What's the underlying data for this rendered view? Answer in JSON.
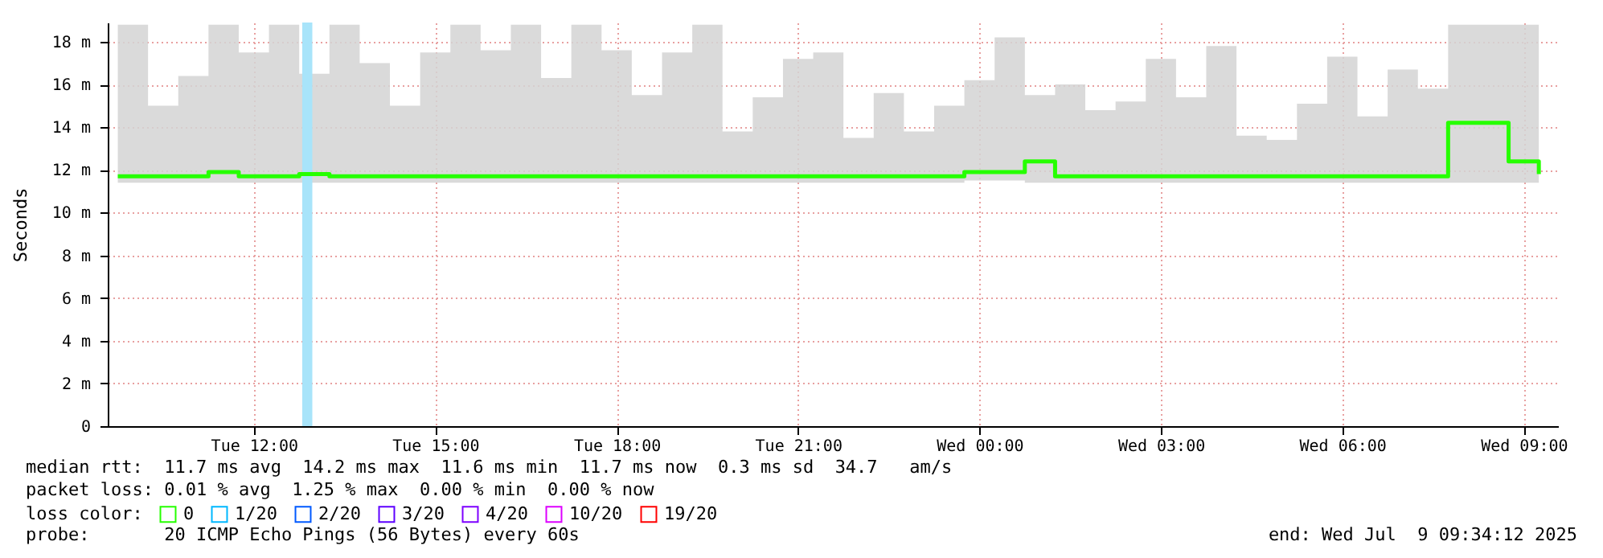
{
  "chart_data": {
    "type": "step",
    "ylabel": "Seconds",
    "x": [
      "2025-07-08T09:45",
      "2025-07-08T10:15",
      "2025-07-08T10:45",
      "2025-07-08T11:15",
      "2025-07-08T11:45",
      "2025-07-08T12:15",
      "2025-07-08T12:45",
      "2025-07-08T13:15",
      "2025-07-08T13:45",
      "2025-07-08T14:15",
      "2025-07-08T14:45",
      "2025-07-08T15:15",
      "2025-07-08T15:45",
      "2025-07-08T16:15",
      "2025-07-08T16:45",
      "2025-07-08T17:15",
      "2025-07-08T17:45",
      "2025-07-08T18:15",
      "2025-07-08T18:45",
      "2025-07-08T19:15",
      "2025-07-08T19:45",
      "2025-07-08T20:15",
      "2025-07-08T20:45",
      "2025-07-08T21:15",
      "2025-07-08T21:45",
      "2025-07-08T22:15",
      "2025-07-08T22:45",
      "2025-07-08T23:15",
      "2025-07-08T23:45",
      "2025-07-09T00:15",
      "2025-07-09T00:45",
      "2025-07-09T01:15",
      "2025-07-09T01:45",
      "2025-07-09T02:15",
      "2025-07-09T02:45",
      "2025-07-09T03:15",
      "2025-07-09T03:45",
      "2025-07-09T04:15",
      "2025-07-09T04:45",
      "2025-07-09T05:15",
      "2025-07-09T05:45",
      "2025-07-09T06:15",
      "2025-07-09T06:45",
      "2025-07-09T07:15",
      "2025-07-09T07:45",
      "2025-07-09T08:15",
      "2025-07-09T08:45",
      "2025-07-09T09:15"
    ],
    "series": [
      {
        "name": "0",
        "color": "#26ff00",
        "values": [
          11.7,
          11.7,
          11.7,
          11.9,
          11.7,
          11.7,
          11.8,
          11.7,
          11.7,
          11.7,
          11.7,
          11.7,
          11.7,
          11.7,
          11.7,
          11.7,
          11.7,
          11.7,
          11.7,
          11.7,
          11.7,
          11.7,
          11.7,
          11.7,
          11.7,
          11.7,
          11.7,
          11.7,
          11.9,
          11.9,
          12.4,
          11.7,
          11.7,
          11.7,
          11.7,
          11.7,
          11.7,
          11.7,
          11.7,
          11.7,
          11.7,
          11.7,
          11.7,
          11.7,
          14.2,
          14.2,
          12.4,
          11.8
        ],
        "lower": [
          11.4,
          11.4,
          11.4,
          11.4,
          11.4,
          11.4,
          11.4,
          11.4,
          11.4,
          11.4,
          11.4,
          11.4,
          11.4,
          11.4,
          11.4,
          11.4,
          11.4,
          11.4,
          11.4,
          11.4,
          11.4,
          11.4,
          11.4,
          11.4,
          11.4,
          11.4,
          11.4,
          11.4,
          11.5,
          11.5,
          11.4,
          11.4,
          11.4,
          11.4,
          11.4,
          11.4,
          11.4,
          11.4,
          11.4,
          11.4,
          11.4,
          11.4,
          11.4,
          11.4,
          11.4,
          11.4,
          11.4,
          11.4
        ],
        "upper": [
          18.8,
          15,
          16.4,
          18.8,
          17.5,
          18.8,
          16.5,
          18.8,
          17,
          15,
          17.5,
          18.8,
          17.6,
          18.8,
          16.3,
          18.8,
          17.6,
          15.5,
          17.5,
          18.8,
          13.8,
          15.4,
          17.2,
          17.5,
          13.5,
          15.6,
          13.8,
          15,
          16.2,
          18.2,
          15.5,
          16,
          14.8,
          15.2,
          17.2,
          15.4,
          17.8,
          13.6,
          13.4,
          15.1,
          17.3,
          14.5,
          16.7,
          15.8,
          18.8,
          18.8,
          18.8,
          18.8
        ]
      },
      {
        "name": "1/20",
        "color": "#00b8ff",
        "values": [
          null,
          null,
          null,
          null,
          null,
          null,
          null,
          null,
          null,
          null,
          null,
          null,
          null,
          null,
          null,
          null,
          null,
          null,
          null,
          null,
          null,
          null,
          null,
          null,
          null,
          null,
          null,
          null,
          null,
          null,
          null,
          null,
          null,
          null,
          null,
          null,
          null,
          null,
          null,
          null,
          null,
          null,
          null,
          null,
          null,
          null,
          null,
          null
        ]
      },
      {
        "name": "2/20",
        "color": "#0059ff",
        "values": [
          null,
          null,
          null,
          null,
          null,
          null,
          null,
          null,
          null,
          null,
          null,
          null,
          null,
          null,
          null,
          null,
          null,
          null,
          null,
          null,
          null,
          null,
          null,
          null,
          null,
          null,
          null,
          null,
          null,
          null,
          null,
          null,
          null,
          null,
          null,
          null,
          null,
          null,
          null,
          null,
          null,
          null,
          null,
          null,
          null,
          null,
          null,
          null
        ]
      },
      {
        "name": "3/20",
        "color": "#5e00ff",
        "values": [
          null,
          null,
          null,
          null,
          null,
          null,
          null,
          null,
          null,
          null,
          null,
          null,
          null,
          null,
          null,
          null,
          null,
          null,
          null,
          null,
          null,
          null,
          null,
          null,
          null,
          null,
          null,
          null,
          null,
          null,
          null,
          null,
          null,
          null,
          null,
          null,
          null,
          null,
          null,
          null,
          null,
          null,
          null,
          null,
          null,
          null,
          null,
          null
        ]
      },
      {
        "name": "4/20",
        "color": "#7e00ff",
        "values": [
          null,
          null,
          null,
          null,
          null,
          null,
          null,
          null,
          null,
          null,
          null,
          null,
          null,
          null,
          null,
          null,
          null,
          null,
          null,
          null,
          null,
          null,
          null,
          null,
          null,
          null,
          null,
          null,
          null,
          null,
          null,
          null,
          null,
          null,
          null,
          null,
          null,
          null,
          null,
          null,
          null,
          null,
          null,
          null,
          null,
          null,
          null,
          null
        ]
      },
      {
        "name": "10/20",
        "color": "#dd00ff",
        "values": [
          null,
          null,
          null,
          null,
          null,
          null,
          null,
          null,
          null,
          null,
          null,
          null,
          null,
          null,
          null,
          null,
          null,
          null,
          null,
          null,
          null,
          null,
          null,
          null,
          null,
          null,
          null,
          null,
          null,
          null,
          null,
          null,
          null,
          null,
          null,
          null,
          null,
          null,
          null,
          null,
          null,
          null,
          null,
          null,
          null,
          null,
          null,
          null
        ]
      },
      {
        "name": "19/20",
        "color": "#ff0000",
        "values": [
          null,
          null,
          null,
          null,
          null,
          null,
          null,
          null,
          null,
          null,
          null,
          null,
          null,
          null,
          null,
          null,
          null,
          null,
          null,
          null,
          null,
          null,
          null,
          null,
          null,
          null,
          null,
          null,
          null,
          null,
          null,
          null,
          null,
          null,
          null,
          null,
          null,
          null,
          null,
          null,
          null,
          null,
          null,
          null,
          null,
          null,
          null,
          null
        ]
      }
    ],
    "bands": [
      {
        "axis": "x",
        "from": "2025-07-08T12:48",
        "to": "2025-07-08T12:58",
        "color": "#a8e4fa"
      }
    ],
    "legend_title": "loss color:",
    "legend": "bottom left",
    "xlim": [
      "2025-07-08T09:35",
      "2025-07-09T09:34"
    ],
    "xticks": [
      {
        "value": "2025-07-08T12:00",
        "label": "Tue 12:00"
      },
      {
        "value": "2025-07-08T15:00",
        "label": "Tue 15:00"
      },
      {
        "value": "2025-07-08T18:00",
        "label": "Tue 18:00"
      },
      {
        "value": "2025-07-08T21:00",
        "label": "Tue 21:00"
      },
      {
        "value": "2025-07-09T00:00",
        "label": "Wed 00:00"
      },
      {
        "value": "2025-07-09T03:00",
        "label": "Wed 03:00"
      },
      {
        "value": "2025-07-09T06:00",
        "label": "Wed 06:00"
      },
      {
        "value": "2025-07-09T09:00",
        "label": "Wed 09:00"
      }
    ],
    "ylim": [
      0,
      18.9
    ],
    "yticks": [
      0,
      {
        "value": 2,
        "label": "2 m"
      },
      {
        "value": 4,
        "label": "4 m"
      },
      {
        "value": 6,
        "label": "6 m"
      },
      {
        "value": 8,
        "label": "8 m"
      },
      {
        "value": 10,
        "label": "10 m"
      },
      {
        "value": 12,
        "label": "12 m"
      },
      {
        "value": 14,
        "label": "14 m"
      },
      {
        "value": 16,
        "label": "16 m"
      },
      {
        "value": 18,
        "label": "18 m"
      }
    ],
    "grid": true,
    "annotations": [
      "median rtt:  11.7 ms avg  14.2 ms max  11.6 ms min  11.7 ms now  0.3 ms sd  34.7   am/s",
      "packet loss: 0.01 % avg  1.25 % max  0.00 % min  0.00 % now",
      "probe:       20 ICMP Echo Pings (56 Bytes) every 60s",
      "end: Wed Jul  9 09:34:12 2025"
    ]
  }
}
